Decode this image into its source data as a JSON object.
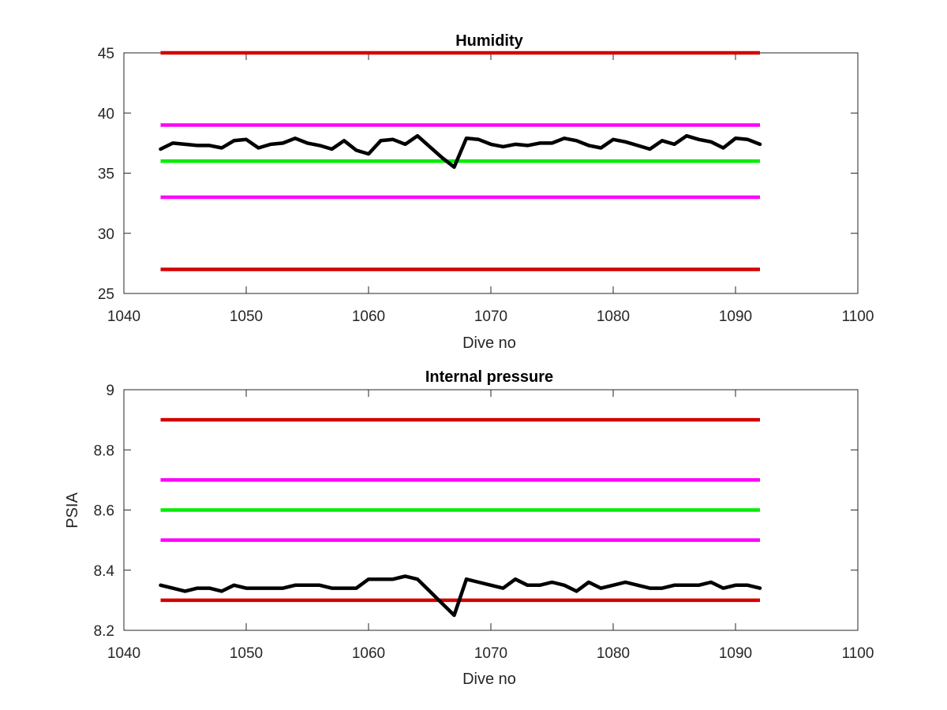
{
  "chart_data": [
    {
      "type": "line",
      "title": "Humidity",
      "xlabel": "Dive no",
      "ylabel": "",
      "xlim": [
        1040,
        1100
      ],
      "ylim": [
        25,
        45
      ],
      "xticks": [
        "1040",
        "1050",
        "1060",
        "1070",
        "1080",
        "1090",
        "1100"
      ],
      "yticks": [
        "25",
        "30",
        "35",
        "40",
        "45"
      ],
      "grid": false,
      "x": [
        1043,
        1044,
        1045,
        1046,
        1047,
        1048,
        1049,
        1050,
        1051,
        1052,
        1053,
        1054,
        1055,
        1056,
        1057,
        1058,
        1059,
        1060,
        1061,
        1062,
        1063,
        1064,
        1065,
        1066,
        1067,
        1068,
        1069,
        1070,
        1071,
        1072,
        1073,
        1074,
        1075,
        1076,
        1077,
        1078,
        1079,
        1080,
        1081,
        1082,
        1083,
        1084,
        1085,
        1086,
        1087,
        1088,
        1089,
        1090,
        1091,
        1092
      ],
      "series": [
        {
          "color": "#000000",
          "values": [
            37.0,
            37.5,
            37.4,
            37.3,
            37.3,
            37.1,
            37.7,
            37.8,
            37.1,
            37.4,
            37.5,
            37.9,
            37.5,
            37.3,
            37.0,
            37.7,
            36.9,
            36.6,
            37.7,
            37.8,
            37.4,
            38.1,
            37.2,
            36.3,
            35.5,
            37.9,
            37.8,
            37.4,
            37.2,
            37.4,
            37.3,
            37.5,
            37.5,
            37.9,
            37.7,
            37.3,
            37.1,
            37.8,
            37.6,
            37.3,
            37.0,
            37.7,
            37.4,
            38.1,
            37.8,
            37.6,
            37.1,
            37.9,
            37.8,
            37.4
          ]
        }
      ],
      "reference_lines": [
        {
          "y": 45,
          "color": "#d40000",
          "xmin": 1043,
          "xmax": 1092
        },
        {
          "y": 39,
          "color": "#ff00ff",
          "xmin": 1043,
          "xmax": 1092
        },
        {
          "y": 36,
          "color": "#00ee00",
          "xmin": 1043,
          "xmax": 1092
        },
        {
          "y": 33,
          "color": "#ff00ff",
          "xmin": 1043,
          "xmax": 1092
        },
        {
          "y": 27,
          "color": "#d40000",
          "xmin": 1043,
          "xmax": 1092
        }
      ]
    },
    {
      "type": "line",
      "title": "Internal pressure",
      "xlabel": "Dive no",
      "ylabel": "PSIA",
      "xlim": [
        1040,
        1100
      ],
      "ylim": [
        8.2,
        9.0
      ],
      "xticks": [
        "1040",
        "1050",
        "1060",
        "1070",
        "1080",
        "1090",
        "1100"
      ],
      "yticks": [
        "8.2",
        "8.4",
        "8.6",
        "8.8",
        "9"
      ],
      "grid": false,
      "x": [
        1043,
        1044,
        1045,
        1046,
        1047,
        1048,
        1049,
        1050,
        1051,
        1052,
        1053,
        1054,
        1055,
        1056,
        1057,
        1058,
        1059,
        1060,
        1061,
        1062,
        1063,
        1064,
        1065,
        1066,
        1067,
        1068,
        1069,
        1070,
        1071,
        1072,
        1073,
        1074,
        1075,
        1076,
        1077,
        1078,
        1079,
        1080,
        1081,
        1082,
        1083,
        1084,
        1085,
        1086,
        1087,
        1088,
        1089,
        1090,
        1091,
        1092
      ],
      "series": [
        {
          "color": "#000000",
          "values": [
            8.35,
            8.34,
            8.33,
            8.34,
            8.34,
            8.33,
            8.35,
            8.34,
            8.34,
            8.34,
            8.34,
            8.35,
            8.35,
            8.35,
            8.34,
            8.34,
            8.34,
            8.37,
            8.37,
            8.37,
            8.38,
            8.37,
            8.33,
            8.29,
            8.25,
            8.37,
            8.36,
            8.35,
            8.34,
            8.37,
            8.35,
            8.35,
            8.36,
            8.35,
            8.33,
            8.36,
            8.34,
            8.35,
            8.36,
            8.35,
            8.34,
            8.34,
            8.35,
            8.35,
            8.35,
            8.36,
            8.34,
            8.35,
            8.35,
            8.34
          ]
        }
      ],
      "reference_lines": [
        {
          "y": 8.9,
          "color": "#d40000",
          "xmin": 1043,
          "xmax": 1092
        },
        {
          "y": 8.7,
          "color": "#ff00ff",
          "xmin": 1043,
          "xmax": 1092
        },
        {
          "y": 8.6,
          "color": "#00ee00",
          "xmin": 1043,
          "xmax": 1092
        },
        {
          "y": 8.5,
          "color": "#ff00ff",
          "xmin": 1043,
          "xmax": 1092
        },
        {
          "y": 8.3,
          "color": "#d40000",
          "xmin": 1043,
          "xmax": 1092
        }
      ]
    }
  ]
}
